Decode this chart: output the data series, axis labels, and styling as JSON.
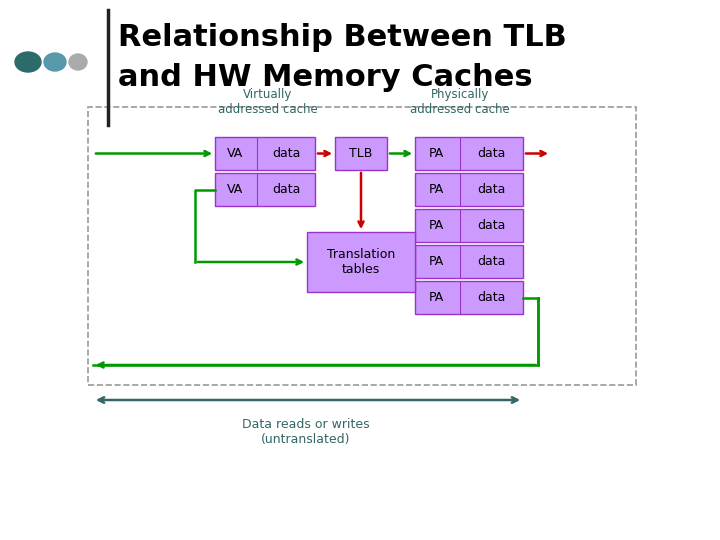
{
  "title_line1": "Relationship Between TLB",
  "title_line2": "and HW Memory Caches",
  "title_fontsize": 22,
  "bg_color": "#ffffff",
  "cell_fill": "#cc99ff",
  "cell_border": "#9933cc",
  "outer_box_color": "#999999",
  "arrow_green": "#009900",
  "arrow_red": "#cc0000",
  "label_virtually": "Virtually\naddressed cache",
  "label_physically": "Physically\naddressed cache",
  "label_va": "VA",
  "label_data": "data",
  "label_pa": "PA",
  "label_tlb": "TLB",
  "label_translation": "Translation\ntables",
  "label_bottom": "Data reads or writes\n(untranslated)",
  "dots_colors": [
    "#2d6b6b",
    "#5599aa",
    "#aaaaaa"
  ],
  "divider_color": "#222222",
  "label_color": "#336666"
}
